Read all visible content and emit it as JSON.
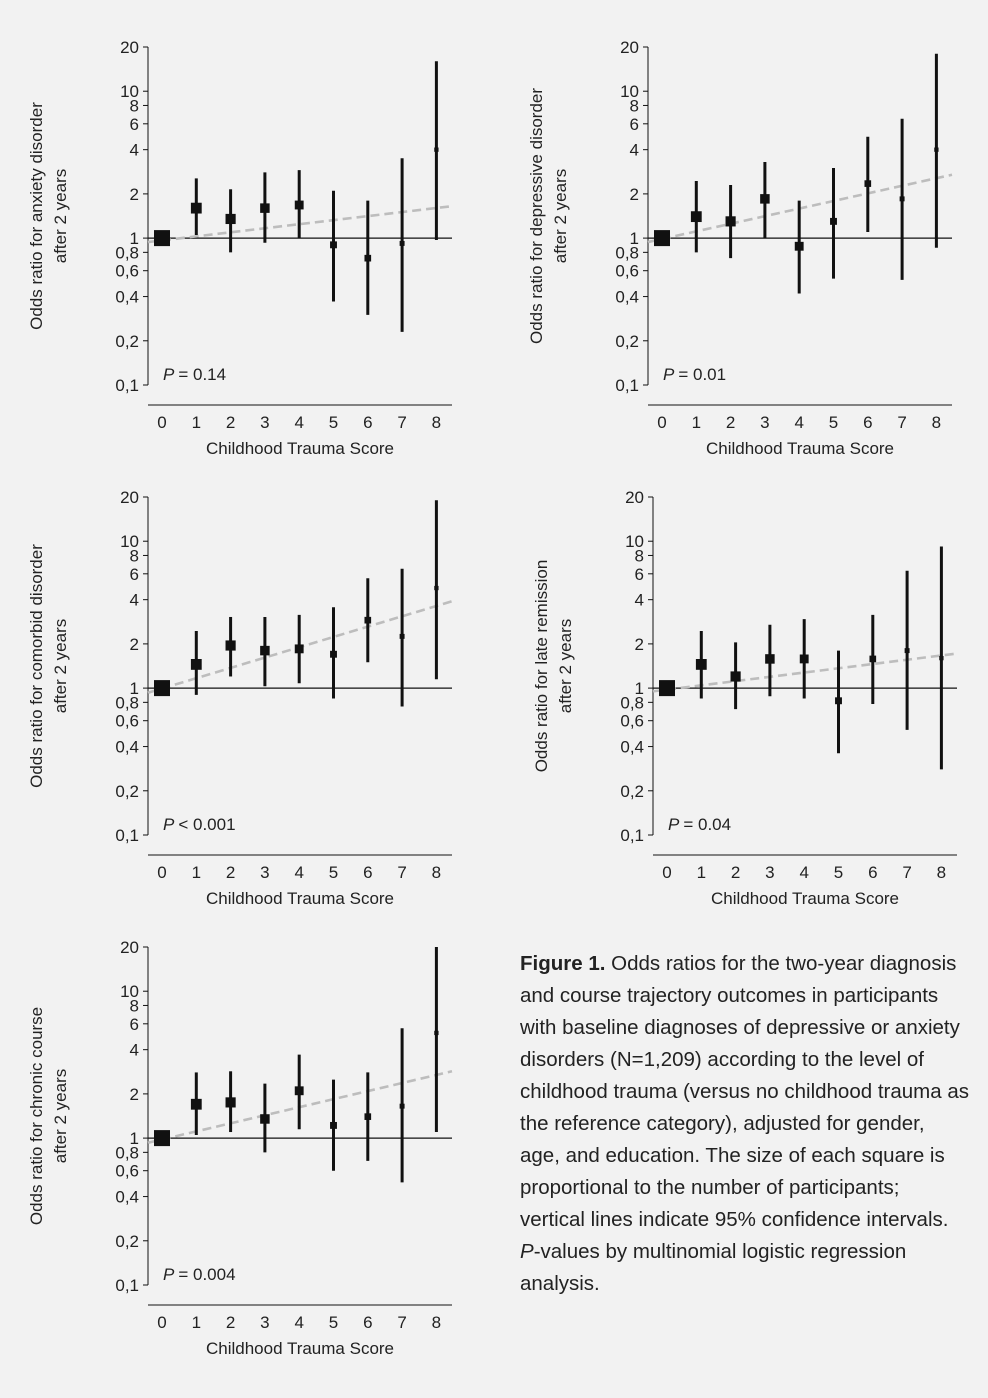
{
  "caption": {
    "lead": "Figure 1.",
    "before_p": " Odds ratios for the two-year diagnosis and course trajectory outcomes in participants with baseline diagnoses of depressive or anxiety disorders (N=1,209) according to the level of childhood trauma (versus no childhood trauma as the refe­rence category), adjusted for gender, age, and education. The size of each square is proportional to the number of participants; vertical lines indicate 95% confidence intervals. ",
    "p_letter": "P",
    "after_p": "-values by multinomial logistic regression analysis."
  },
  "colors": {
    "line": "#111111",
    "trend": "#bdbdbd",
    "background": "#f2f2f2"
  },
  "chart_data": [
    {
      "type": "scatter",
      "ylabel": [
        "Odds ratio for anxiety disorder",
        "after 2 years"
      ],
      "xlabel": "Childhood Trauma Score",
      "x": [
        0,
        1,
        2,
        3,
        4,
        5,
        6,
        7,
        8
      ],
      "y_ticks": [
        "20",
        "10",
        "8",
        "6",
        "4",
        "2",
        "1",
        "0,8",
        "0,6",
        "0,4",
        "0,2",
        "0,1"
      ],
      "y_scale": "log",
      "ylim": [
        0.1,
        20
      ],
      "reference_line": 1,
      "p_letter": "P",
      "p_text": "= 0.14",
      "or": [
        1.0,
        1.6,
        1.35,
        1.6,
        1.68,
        0.9,
        0.73,
        0.92,
        4.0
      ],
      "ci_low": [
        null,
        1.05,
        0.8,
        0.93,
        1.0,
        0.37,
        0.3,
        0.23,
        0.97
      ],
      "ci_high": [
        null,
        2.55,
        2.15,
        2.8,
        2.9,
        2.1,
        1.8,
        3.5,
        16.0
      ],
      "weight": [
        1.0,
        0.6,
        0.55,
        0.5,
        0.45,
        0.3,
        0.28,
        0.15,
        0.1
      ],
      "trend": {
        "start": 0.94,
        "end": 1.65
      }
    },
    {
      "type": "scatter",
      "ylabel": [
        "Odds ratio for depressive disorder",
        "after 2 years"
      ],
      "xlabel": "Childhood Trauma Score",
      "x": [
        0,
        1,
        2,
        3,
        4,
        5,
        6,
        7,
        8
      ],
      "y_ticks": [
        "20",
        "10",
        "8",
        "6",
        "4",
        "2",
        "1",
        "0,8",
        "0,6",
        "0,4",
        "0,2",
        "0,1"
      ],
      "y_scale": "log",
      "ylim": [
        0.1,
        20
      ],
      "reference_line": 1,
      "p_letter": "P",
      "p_text": "= 0.01",
      "or": [
        1.0,
        1.4,
        1.3,
        1.85,
        0.88,
        1.3,
        2.35,
        1.85,
        4.0
      ],
      "ci_low": [
        null,
        0.8,
        0.73,
        1.0,
        0.42,
        0.53,
        1.1,
        0.52,
        0.86
      ],
      "ci_high": [
        null,
        2.45,
        2.3,
        3.3,
        1.8,
        3.0,
        4.9,
        6.5,
        18.0
      ],
      "weight": [
        1.0,
        0.6,
        0.55,
        0.5,
        0.45,
        0.3,
        0.28,
        0.15,
        0.1
      ],
      "trend": {
        "start": 0.94,
        "end": 2.7
      }
    },
    {
      "type": "scatter",
      "ylabel": [
        "Odds ratio for comorbid disorder",
        "after 2 years"
      ],
      "xlabel": "Childhood Trauma Score",
      "x": [
        0,
        1,
        2,
        3,
        4,
        5,
        6,
        7,
        8
      ],
      "y_ticks": [
        "20",
        "10",
        "8",
        "6",
        "4",
        "2",
        "1",
        "0,8",
        "0,6",
        "0,4",
        "0,2",
        "0,1"
      ],
      "y_scale": "log",
      "ylim": [
        0.1,
        20
      ],
      "reference_line": 1,
      "p_letter": "P",
      "p_text": "< 0.001",
      "or": [
        1.0,
        1.45,
        1.95,
        1.8,
        1.85,
        1.7,
        2.9,
        2.25,
        4.8
      ],
      "ci_low": [
        null,
        0.9,
        1.2,
        1.03,
        1.08,
        0.85,
        1.5,
        0.75,
        1.15
      ],
      "ci_high": [
        null,
        2.45,
        3.05,
        3.05,
        3.15,
        3.55,
        5.6,
        6.5,
        19.0
      ],
      "weight": [
        1.0,
        0.6,
        0.55,
        0.5,
        0.45,
        0.3,
        0.28,
        0.15,
        0.1
      ],
      "trend": {
        "start": 0.93,
        "end": 3.9
      }
    },
    {
      "type": "scatter",
      "ylabel": [
        "Odds ratio for late remission",
        "after 2 years"
      ],
      "xlabel": "Childhood Trauma Score",
      "x": [
        0,
        1,
        2,
        3,
        4,
        5,
        6,
        7,
        8
      ],
      "y_ticks": [
        "20",
        "10",
        "8",
        "6",
        "4",
        "2",
        "1",
        "0,8",
        "0,6",
        "0,4",
        "0,2",
        "0,1"
      ],
      "y_scale": "log",
      "ylim": [
        0.1,
        20
      ],
      "reference_line": 1,
      "p_letter": "P",
      "p_text": "= 0.04",
      "or": [
        1.0,
        1.45,
        1.2,
        1.58,
        1.58,
        0.82,
        1.58,
        1.8,
        1.6
      ],
      "ci_low": [
        null,
        0.85,
        0.72,
        0.88,
        0.85,
        0.36,
        0.78,
        0.52,
        0.28
      ],
      "ci_high": [
        null,
        2.45,
        2.05,
        2.7,
        2.95,
        1.8,
        3.15,
        6.3,
        9.2
      ],
      "weight": [
        1.0,
        0.6,
        0.55,
        0.5,
        0.45,
        0.3,
        0.28,
        0.15,
        0.1
      ],
      "trend": {
        "start": 0.95,
        "end": 1.72
      }
    },
    {
      "type": "scatter",
      "ylabel": [
        "Odds ratio for chronic course",
        "after 2 years"
      ],
      "xlabel": "Childhood Trauma Score",
      "x": [
        0,
        1,
        2,
        3,
        4,
        5,
        6,
        7,
        8
      ],
      "y_ticks": [
        "20",
        "10",
        "8",
        "6",
        "4",
        "2",
        "1",
        "0,8",
        "0,6",
        "0,4",
        "0,2",
        "0,1"
      ],
      "y_scale": "log",
      "ylim": [
        0.1,
        20
      ],
      "reference_line": 1,
      "p_letter": "P",
      "p_text": "= 0.004",
      "or": [
        1.0,
        1.7,
        1.75,
        1.35,
        2.1,
        1.22,
        1.4,
        1.65,
        5.2
      ],
      "ci_low": [
        null,
        1.05,
        1.1,
        0.8,
        1.15,
        0.6,
        0.7,
        0.5,
        1.1
      ],
      "ci_high": [
        null,
        2.8,
        2.85,
        2.35,
        3.7,
        2.5,
        2.8,
        5.6,
        20.0
      ],
      "weight": [
        1.0,
        0.6,
        0.55,
        0.5,
        0.45,
        0.3,
        0.28,
        0.15,
        0.1
      ],
      "trend": {
        "start": 0.93,
        "end": 2.85
      }
    }
  ]
}
